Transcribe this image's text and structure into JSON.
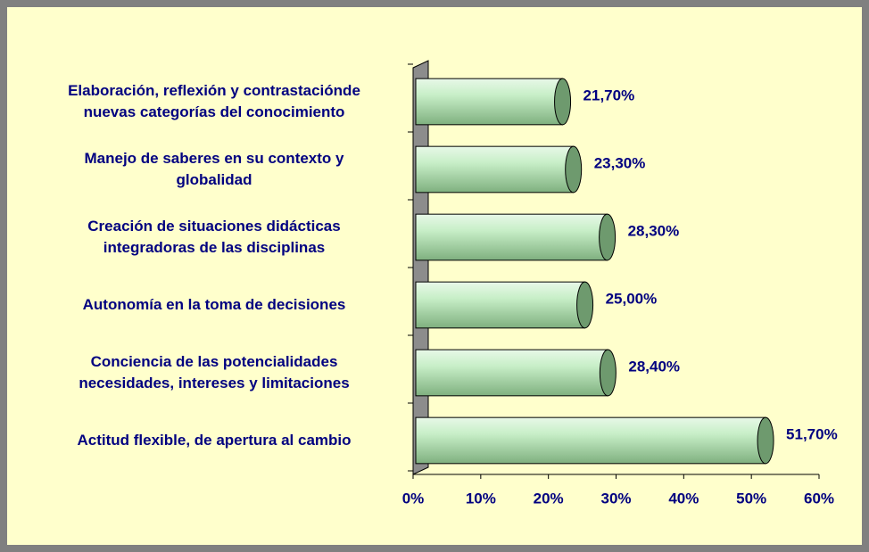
{
  "chart_data": {
    "type": "bar",
    "orientation": "horizontal",
    "categories": [
      "Elaboración, reflexión y contrastaciónde\nnuevas categorías del conocimiento",
      "Manejo de saberes en su contexto y\nglobalidad",
      "Creación de situaciones didácticas\nintegradoras de las disciplinas",
      "Autonomía en la toma de decisiones",
      "Conciencia de las potencialidades\nnecesidades, intereses y limitaciones",
      "Actitud flexible, de apertura al cambio"
    ],
    "values": [
      21.7,
      23.3,
      28.3,
      25.0,
      28.4,
      51.7
    ],
    "value_labels": [
      "21,70%",
      "23,30%",
      "28,30%",
      "25,00%",
      "28,40%",
      "51,70%"
    ],
    "color": "#b8e6b8",
    "xlim": [
      0,
      60
    ],
    "xticks": [
      {
        "value": 0,
        "label": "0%"
      },
      {
        "value": 10,
        "label": "10%"
      },
      {
        "value": 20,
        "label": "20%"
      },
      {
        "value": 30,
        "label": "30%"
      },
      {
        "value": 40,
        "label": "40%"
      },
      {
        "value": 50,
        "label": "50%"
      },
      {
        "value": 60,
        "label": "60%"
      }
    ]
  }
}
